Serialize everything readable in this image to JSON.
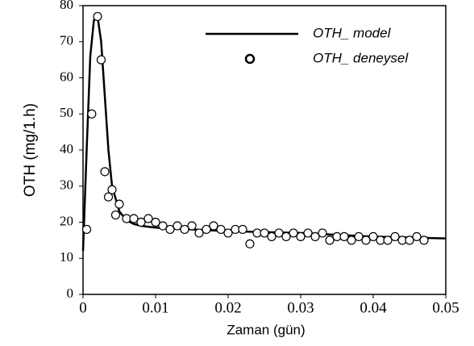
{
  "chart_data": {
    "type": "line-scatter",
    "x_label": "Zaman (gün)",
    "y_label": "OTH (mg/1.h)",
    "xlim": [
      0,
      0.05
    ],
    "xticks": [
      0,
      0.01,
      0.02,
      0.03,
      0.04,
      0.05
    ],
    "ylim": [
      0,
      80
    ],
    "yticks": [
      0,
      10,
      20,
      30,
      40,
      50,
      60,
      70,
      80
    ],
    "grid": false,
    "legend": "top-right",
    "series": [
      {
        "name": "OTH_ model",
        "type": "line",
        "color": "#000000",
        "x": [
          0,
          0.0005,
          0.001,
          0.0015,
          0.002,
          0.0025,
          0.003,
          0.0035,
          0.004,
          0.005,
          0.006,
          0.007,
          0.008,
          0.01,
          0.015,
          0.02,
          0.03,
          0.04,
          0.05
        ],
        "values": [
          12,
          40,
          66,
          76,
          77,
          70,
          55,
          40,
          30,
          23,
          20.5,
          19.5,
          19,
          18.5,
          18,
          17.5,
          17,
          16,
          15.5
        ]
      },
      {
        "name": "OTH_ deneysel",
        "type": "scatter",
        "color": "#000000",
        "x": [
          0.0005,
          0.0012,
          0.002,
          0.0025,
          0.003,
          0.0035,
          0.004,
          0.0045,
          0.005,
          0.006,
          0.007,
          0.008,
          0.009,
          0.01,
          0.011,
          0.012,
          0.013,
          0.014,
          0.015,
          0.016,
          0.017,
          0.018,
          0.019,
          0.02,
          0.021,
          0.022,
          0.023,
          0.024,
          0.025,
          0.026,
          0.027,
          0.028,
          0.029,
          0.03,
          0.031,
          0.032,
          0.033,
          0.034,
          0.035,
          0.036,
          0.037,
          0.038,
          0.039,
          0.04,
          0.041,
          0.042,
          0.043,
          0.044,
          0.045,
          0.046,
          0.047
        ],
        "values": [
          18,
          50,
          77,
          65,
          34,
          27,
          29,
          22,
          25,
          21,
          21,
          20,
          21,
          20,
          19,
          18,
          19,
          18,
          19,
          17,
          18,
          19,
          18,
          17,
          18,
          18,
          14,
          17,
          17,
          16,
          17,
          16,
          17,
          16,
          17,
          16,
          17,
          15,
          16,
          16,
          15,
          16,
          15,
          16,
          15,
          15,
          16,
          15,
          15,
          16,
          15
        ]
      }
    ]
  }
}
